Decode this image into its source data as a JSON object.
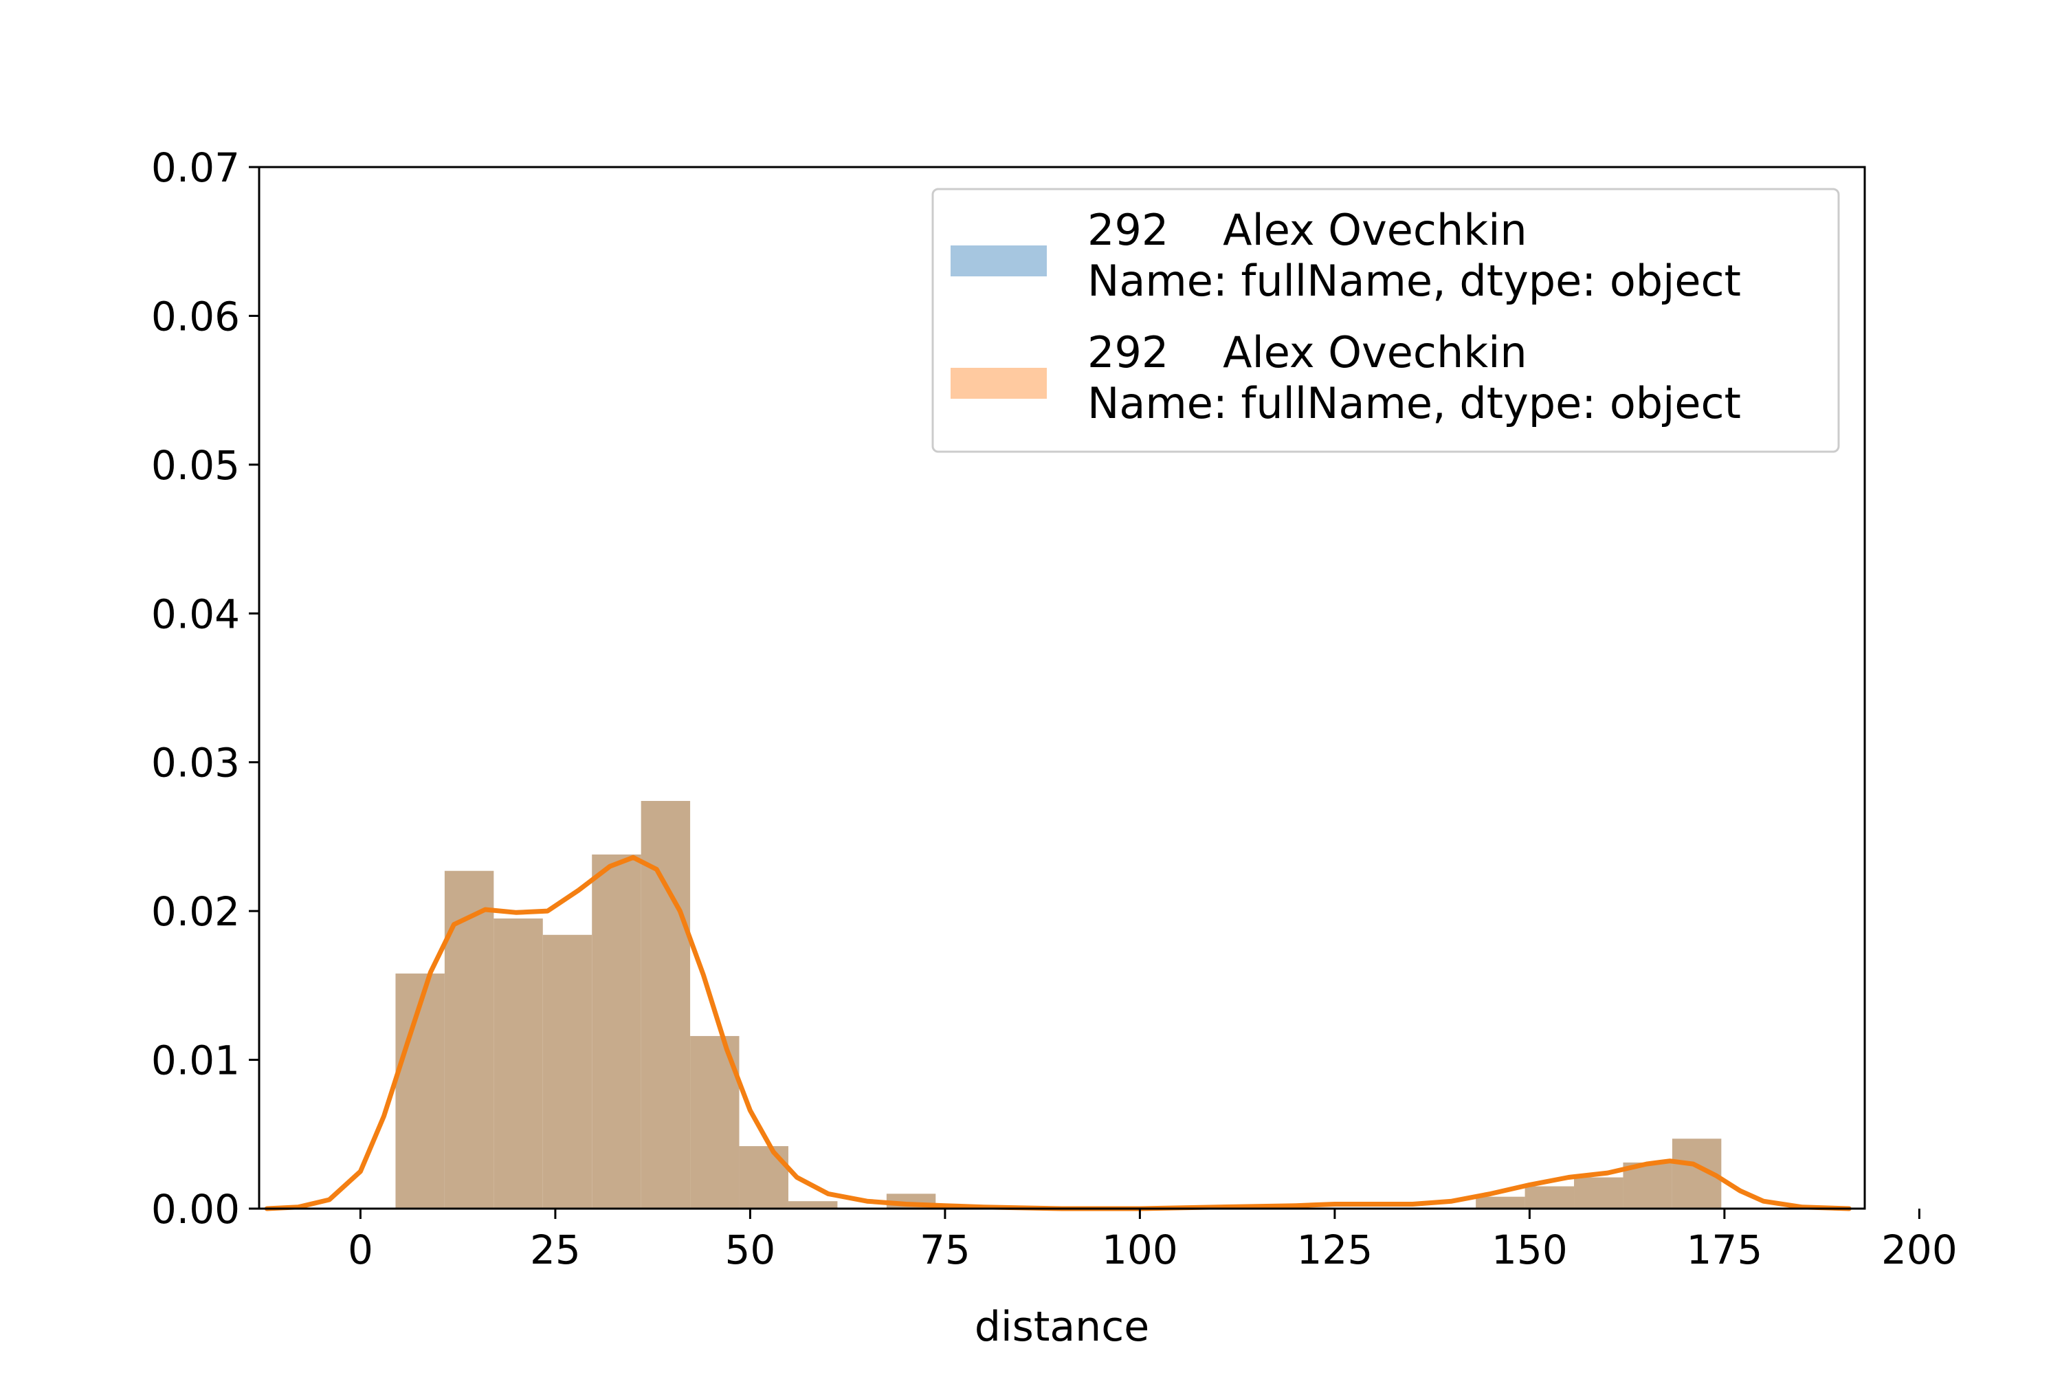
{
  "chart_data": {
    "type": "bar",
    "title": "",
    "xlabel": "distance",
    "ylabel": "",
    "xlim": [
      -13,
      193
    ],
    "ylim": [
      0,
      0.07
    ],
    "xticks": [
      0,
      25,
      50,
      75,
      100,
      125,
      150,
      175,
      200
    ],
    "yticks": [
      0.0,
      0.01,
      0.02,
      0.03,
      0.04,
      0.05,
      0.06,
      0.07
    ],
    "ytick_labels": [
      "0.00",
      "0.01",
      "0.02",
      "0.03",
      "0.04",
      "0.05",
      "0.06",
      "0.07"
    ],
    "grid": false,
    "legend_position": "top-right",
    "histogram": {
      "bin_edges": [
        4.5,
        10.8,
        17.1,
        23.4,
        29.7,
        36.0,
        42.3,
        48.6,
        54.9,
        61.2,
        67.5,
        73.8,
        80.1,
        86.4,
        92.7,
        99.0,
        105.3,
        111.6,
        117.9,
        124.2,
        130.5,
        136.8,
        143.1,
        149.4,
        155.7,
        162.0,
        168.3,
        174.6
      ],
      "density": [
        0.0158,
        0.0227,
        0.0195,
        0.0184,
        0.0238,
        0.0274,
        0.0116,
        0.0042,
        0.0005,
        0.0,
        0.001,
        0.0,
        0.0,
        0.0,
        0.0,
        0.0,
        0.0,
        0.0,
        0.0,
        0.0,
        0.0,
        0.0,
        0.0008,
        0.0015,
        0.0021,
        0.0031,
        0.0047
      ]
    },
    "kde": {
      "x": [
        -12,
        -8,
        -4,
        0,
        3,
        6,
        9,
        12,
        16,
        20,
        24,
        28,
        32,
        35,
        38,
        41,
        44,
        47,
        50,
        53,
        56,
        60,
        65,
        70,
        75,
        80,
        90,
        100,
        110,
        120,
        125,
        130,
        135,
        140,
        145,
        150,
        155,
        160,
        165,
        168,
        171,
        174,
        177,
        180,
        185,
        191
      ],
      "y": [
        0.0,
        0.0001,
        0.0006,
        0.0025,
        0.0062,
        0.0111,
        0.0159,
        0.0191,
        0.0201,
        0.0199,
        0.02,
        0.0214,
        0.023,
        0.0236,
        0.0228,
        0.02,
        0.0157,
        0.0107,
        0.0066,
        0.0038,
        0.0021,
        0.001,
        0.0005,
        0.0003,
        0.0002,
        0.0001,
        0.0,
        0.0,
        0.0001,
        0.0002,
        0.0003,
        0.0003,
        0.0003,
        0.0005,
        0.001,
        0.0016,
        0.0021,
        0.0024,
        0.003,
        0.0032,
        0.003,
        0.0022,
        0.0012,
        0.0005,
        0.0001,
        0.0
      ]
    },
    "series": [
      {
        "name": "292    Alex Ovechkin\nName: fullName, dtype: object",
        "color": "#1f77b4",
        "alpha": 0.4
      },
      {
        "name": "292    Alex Ovechkin\nName: fullName, dtype: object",
        "color": "#ff7f0e",
        "alpha": 0.4
      }
    ],
    "combined_bar_color": "#c7ab8c",
    "kde_color": "#f47f12"
  },
  "legend": {
    "entries": [
      {
        "line1": "292    Alex Ovechkin",
        "line2": "Name: fullName, dtype: object",
        "color": "#a6c6e0"
      },
      {
        "line1": "292    Alex Ovechkin",
        "line2": "Name: fullName, dtype: object",
        "color": "#ffcaa0"
      }
    ]
  }
}
